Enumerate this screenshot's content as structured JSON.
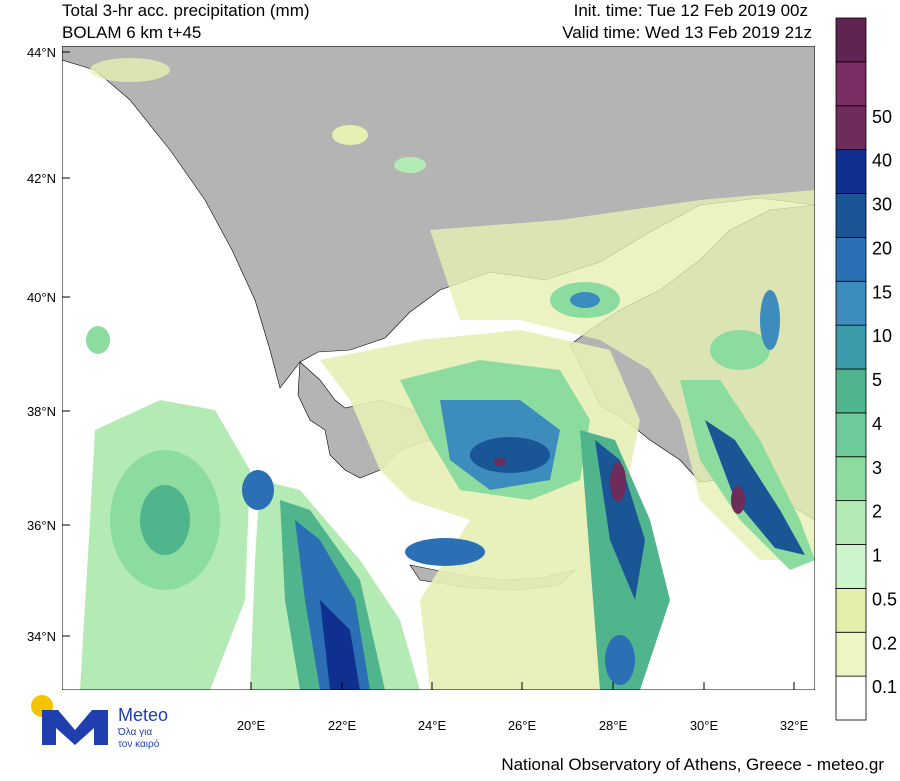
{
  "header": {
    "title_line1": "Total 3-hr acc. precipitation (mm)",
    "title_line2": "BOLAM 6 km t+45",
    "init_time": "Init. time: Tue 12 Feb 2019 00z",
    "valid_time": "Valid time: Wed 13 Feb 2019 21z"
  },
  "map": {
    "lat_labels": [
      "44°N",
      "42°N",
      "40°N",
      "38°N",
      "36°N",
      "34°N"
    ],
    "lon_labels": [
      "20°E",
      "22°E",
      "24°E",
      "26°E",
      "28°E",
      "30°E",
      "32°E"
    ]
  },
  "colorbar": {
    "labels": [
      "0.1",
      "0.2",
      "0.5",
      "1",
      "2",
      "3",
      "4",
      "5",
      "10",
      "15",
      "20",
      "30",
      "40",
      "50"
    ]
  },
  "logo": {
    "name": "Meteo",
    "tagline_1": "Όλα για",
    "tagline_2": "τον καιρό"
  },
  "footer": "National Observatory of Athens, Greece - meteo.gr"
}
